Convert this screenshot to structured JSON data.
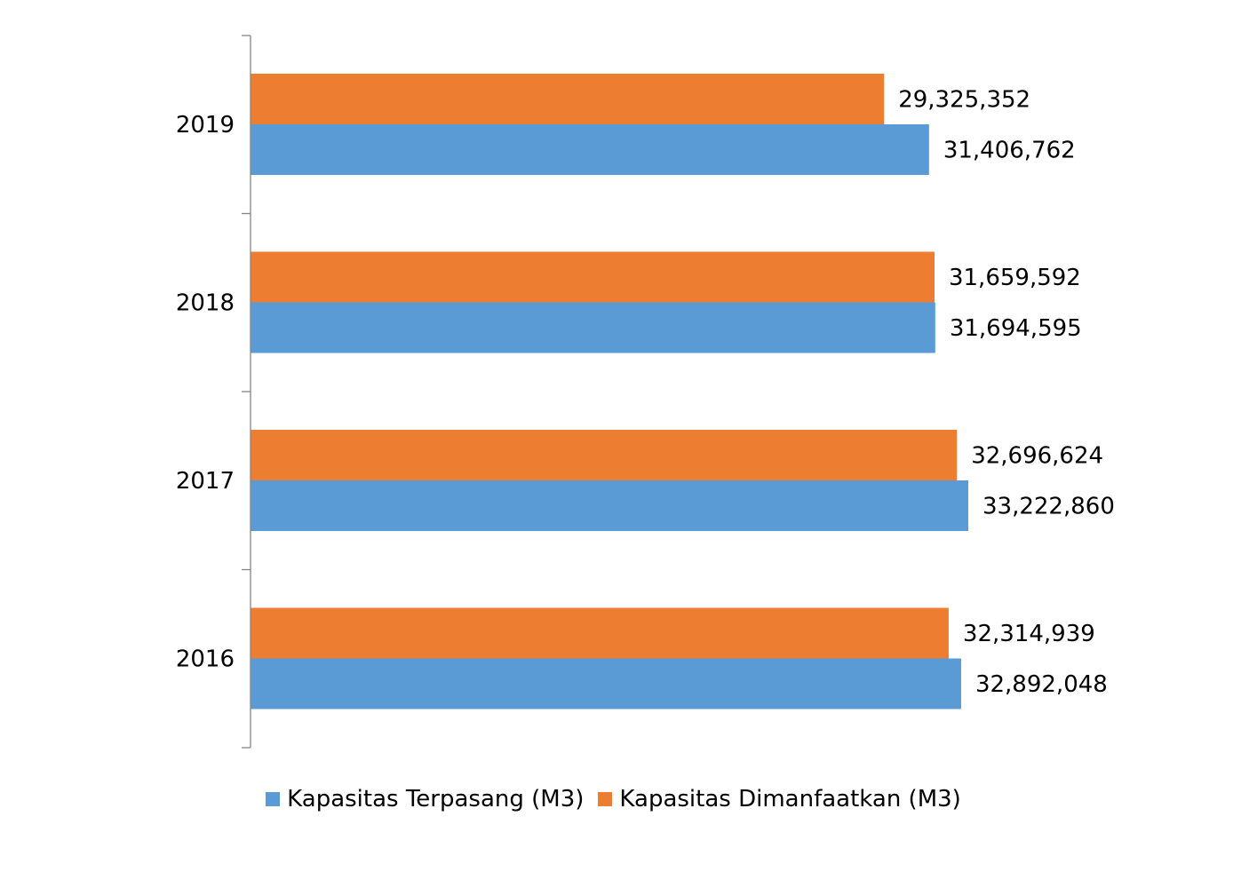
{
  "chart_data": {
    "type": "bar",
    "orientation": "horizontal",
    "categories": [
      "2019",
      "2018",
      "2017",
      "2016"
    ],
    "series": [
      {
        "name": "Kapasitas Dimanfaatkan (M3)",
        "color": "#ED7D31",
        "values": [
          29325352,
          31659592,
          32696624,
          32314939
        ],
        "labels": [
          "29,325,352",
          "31,659,592",
          "32,696,624",
          "32,314,939"
        ]
      },
      {
        "name": "Kapasitas Terpasang (M3)",
        "color": "#5B9BD5",
        "values": [
          31406762,
          31694595,
          33222860,
          32892048
        ],
        "labels": [
          "31,406,762",
          "31,694,595",
          "33,222,860",
          "32,892,048"
        ]
      }
    ],
    "legend_position": "bottom",
    "grid": false
  },
  "legend": {
    "items": [
      {
        "label": "Kapasitas Terpasang (M3)",
        "color": "#5B9BD5"
      },
      {
        "label": "Kapasitas Dimanfaatkan (M3)",
        "color": "#ED7D31"
      }
    ]
  }
}
